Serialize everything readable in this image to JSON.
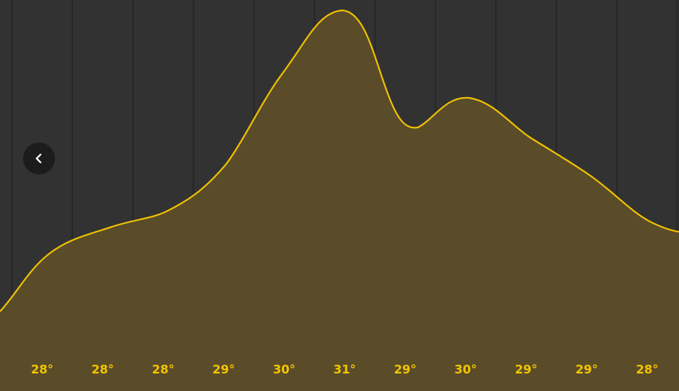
{
  "colors": {
    "background": "#323232",
    "fill": "#5a4c29",
    "line": "#f2c300",
    "label": "#f2c300",
    "divider": "#1f1f1f",
    "back_button_bg": "#1c1c1c",
    "back_button_icon": "#ffffff"
  },
  "back_button": {
    "icon": "chevron-left-icon"
  },
  "chart_data": {
    "type": "area",
    "title": "",
    "xlabel": "",
    "ylabel": "",
    "unit": "°",
    "values": [
      28,
      28,
      28,
      29,
      30,
      31,
      29,
      30,
      29,
      29,
      28
    ],
    "labels": [
      "28°",
      "28°",
      "28°",
      "29°",
      "30°",
      "31°",
      "29°",
      "30°",
      "29°",
      "29°",
      "28°"
    ],
    "grid": true,
    "legend": "none"
  }
}
